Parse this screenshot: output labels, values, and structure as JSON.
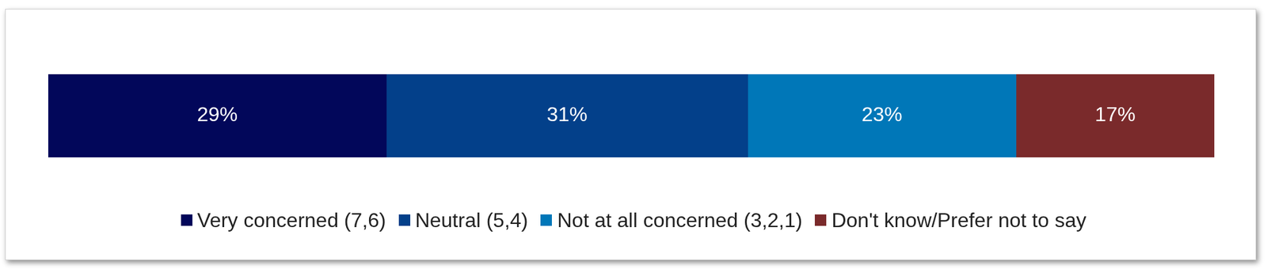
{
  "chart_data": {
    "type": "bar",
    "orientation": "horizontal",
    "stacked": true,
    "data_labels": true,
    "tick_labels": false,
    "legend": "bottom",
    "categories": [
      null
    ],
    "xlim": [
      0,
      100
    ],
    "series": [
      {
        "name": "Very concerned (7,6)",
        "color": "#02075a",
        "values": [
          29
        ],
        "value_labels": [
          "29%"
        ]
      },
      {
        "name": "Neutral (5,4)",
        "color": "#03408a",
        "values": [
          31
        ],
        "value_labels": [
          "31%"
        ]
      },
      {
        "name": "Not at all concerned (3,2,1)",
        "color": "#0077b8",
        "values": [
          23
        ],
        "value_labels": [
          "23%"
        ]
      },
      {
        "name": "Don't know/Prefer not to say",
        "color": "#7a2a2b",
        "values": [
          17
        ],
        "value_labels": [
          "17%"
        ]
      }
    ]
  }
}
